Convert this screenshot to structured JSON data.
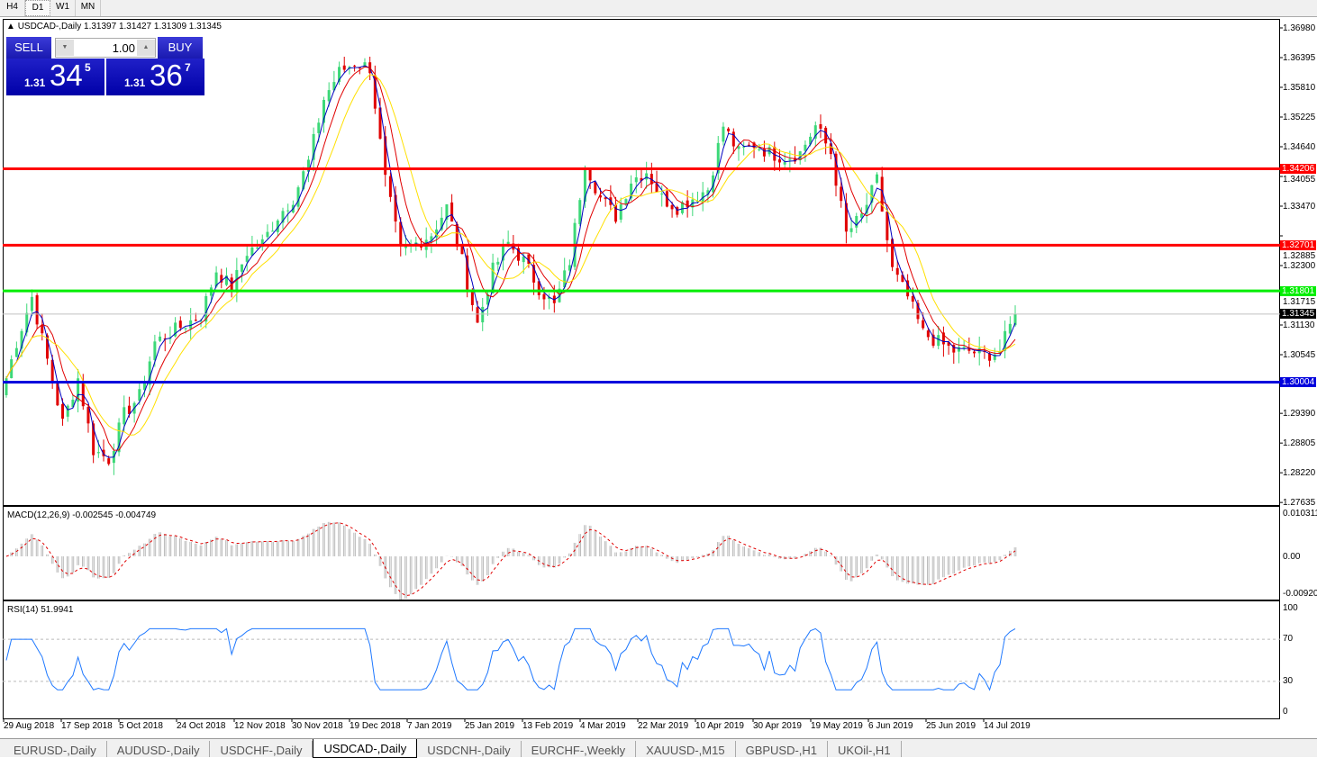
{
  "timeframes": [
    "H4",
    "D1",
    "W1",
    "MN"
  ],
  "active_timeframe": "D1",
  "chart": {
    "title": "USDCAD-,Daily  1.31397 1.31427 1.31309 1.31345",
    "sell_label": "SELL",
    "buy_label": "BUY",
    "lot": "1.00",
    "sell_price": {
      "prefix": "1.31",
      "big": "34",
      "sup": "5"
    },
    "buy_price": {
      "prefix": "1.31",
      "big": "36",
      "sup": "7"
    },
    "colors": {
      "bull": "#3cd878",
      "bear": "#e00000",
      "ma_fast": "#0000c0",
      "ma_mid": "#e00000",
      "ma_slow": "#ffe000",
      "macd_hist": "#bbbbbb",
      "macd_signal": "#e00000",
      "rsi": "#1e78ff"
    }
  },
  "price_axis": [
    "1.36980",
    "1.36395",
    "1.35810",
    "1.35225",
    "1.34640",
    "1.34055",
    "1.33470",
    "1.32885",
    "1.32300",
    "1.31715",
    "1.31130",
    "1.30545",
    "1.29390",
    "1.28805",
    "1.28220",
    "1.27635"
  ],
  "levels": [
    {
      "price": "1.34206",
      "color": "#ff0000"
    },
    {
      "price": "1.32701",
      "color": "#ff0000"
    },
    {
      "price": "1.31801",
      "color": "#00ee00"
    },
    {
      "price": "1.30004",
      "color": "#0000dd"
    }
  ],
  "current_price": "1.31345",
  "closes": [
    1.2973,
    1.3079,
    1.3168,
    1.3044,
    1.292,
    1.3008,
    1.2867,
    1.2849,
    1.2937,
    1.2973,
    1.3079,
    1.3097,
    1.3115,
    1.3132,
    1.3221,
    1.3186,
    1.3257,
    1.3274,
    1.3327,
    1.3363,
    1.3434,
    1.3558,
    1.3611,
    1.3629,
    1.362,
    1.3398,
    1.3257,
    1.3274,
    1.3292,
    1.3345,
    1.3239,
    1.3115,
    1.3221,
    1.3274,
    1.3239,
    1.3186,
    1.315,
    1.3239,
    1.3434,
    1.3363,
    1.3327,
    1.3398,
    1.3416,
    1.3363,
    1.3345,
    1.3363,
    1.3381,
    1.3505,
    1.3452,
    1.3469,
    1.3452,
    1.3443,
    1.3452,
    1.3505,
    1.3452,
    1.3292,
    1.3327,
    1.3398,
    1.3221,
    1.3168,
    1.3097,
    1.3079,
    1.3062,
    1.3062,
    1.3053,
    1.3062,
    1.31345
  ],
  "macd": {
    "label": "MACD(12,26,9) -0.002545 -0.004749",
    "axis": [
      "0.010311",
      "0.00",
      "-0.009203"
    ]
  },
  "rsi": {
    "label": "RSI(14) 51.9941",
    "axis": [
      "100",
      "70",
      "30",
      "0"
    ]
  },
  "time_axis": [
    "29 Aug 2018",
    "17 Sep 2018",
    "5 Oct 2018",
    "24 Oct 2018",
    "12 Nov 2018",
    "30 Nov 2018",
    "19 Dec 2018",
    "7 Jan 2019",
    "25 Jan 2019",
    "13 Feb 2019",
    "4 Mar 2019",
    "22 Mar 2019",
    "10 Apr 2019",
    "30 Apr 2019",
    "19 May 2019",
    "6 Jun 2019",
    "25 Jun 2019",
    "14 Jul 2019"
  ],
  "tabs": [
    "EURUSD-,Daily",
    "AUDUSD-,Daily",
    "USDCHF-,Daily",
    "USDCAD-,Daily",
    "USDCNH-,Daily",
    "EURCHF-,Weekly",
    "XAUUSD-,M15",
    "GBPUSD-,H1",
    "UKOil-,H1"
  ],
  "active_tab": "USDCAD-,Daily"
}
